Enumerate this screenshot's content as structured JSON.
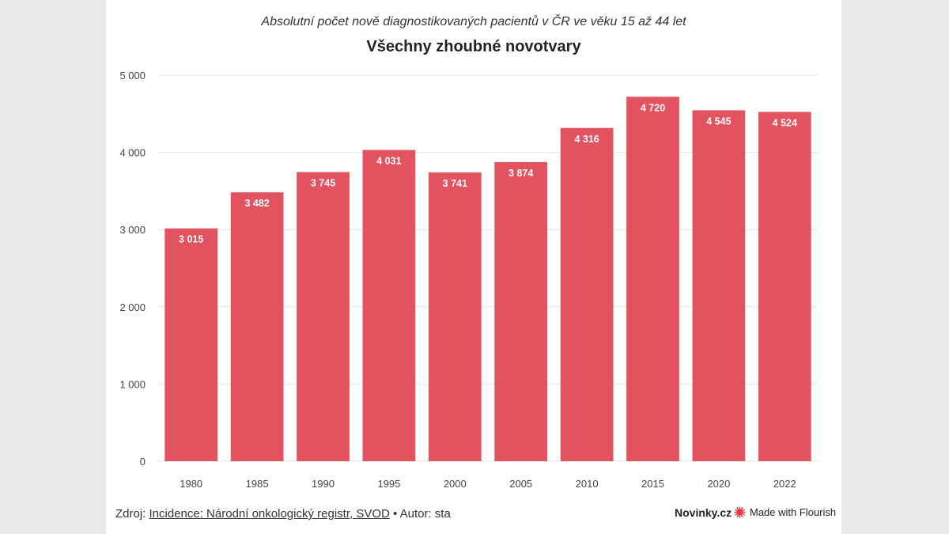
{
  "chart_data": {
    "type": "bar",
    "subtitle": "Absolutní počet nově diagnostikovaných pacientů v ČR ve věku 15 až 44 let",
    "title": "Všechny zhoubné novotvary",
    "categories": [
      "1980",
      "1985",
      "1990",
      "1995",
      "2000",
      "2005",
      "2010",
      "2015",
      "2020",
      "2022"
    ],
    "values": [
      3015,
      3482,
      3745,
      4031,
      3741,
      3874,
      4316,
      4720,
      4545,
      4524
    ],
    "data_labels": [
      "3 015",
      "3 482",
      "3 745",
      "4 031",
      "3 741",
      "3 874",
      "4 316",
      "4 720",
      "4 545",
      "4 524"
    ],
    "yticks": [
      0,
      1000,
      2000,
      3000,
      4000,
      5000
    ],
    "ytick_labels": [
      "0",
      "1 000",
      "2 000",
      "3 000",
      "4 000",
      "5 000"
    ],
    "ylim": [
      0,
      5000
    ],
    "bar_color": "#e3525f",
    "grid": true,
    "legend": "none"
  },
  "footer": {
    "source_prefix": "Zdroj: ",
    "source_link": "Incidence: Národní onkologický registr, SVOD",
    "author": " • Autor: sta",
    "brand": "Novinky.cz",
    "flourish": "Made with Flourish"
  },
  "colors": {
    "accent": "#e3525f",
    "flourish_icon": "#e8383d"
  },
  "icons": {
    "flourish": "flourish-logo-icon"
  }
}
